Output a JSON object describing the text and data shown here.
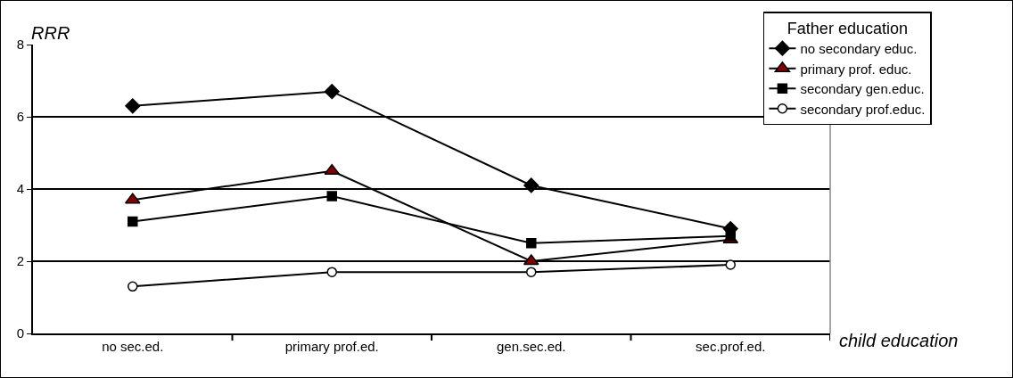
{
  "chart_data": {
    "type": "line",
    "xlabel": "child education",
    "ylabel": "RRR",
    "legend_title": "Father education",
    "categories": [
      "no sec.ed.",
      "primary prof.ed.",
      "gen.sec.ed.",
      "sec.prof.ed."
    ],
    "series": [
      {
        "name": "no secondary educ.",
        "color": "#000000",
        "marker": "diamond",
        "values": [
          6.3,
          6.7,
          4.1,
          2.9
        ]
      },
      {
        "name": "primary prof. educ.",
        "color": "#800000",
        "marker": "triangle",
        "values": [
          3.7,
          4.5,
          2.0,
          2.6
        ]
      },
      {
        "name": "secondary gen.educ.",
        "color": "#000000",
        "marker": "square",
        "values": [
          3.1,
          3.8,
          2.5,
          2.7
        ]
      },
      {
        "name": "secondary prof.educ.",
        "color": "#ffffff",
        "marker": "circle",
        "values": [
          1.3,
          1.7,
          1.7,
          1.9
        ]
      }
    ],
    "ylim": [
      0,
      8
    ],
    "yticks": [
      0,
      2,
      4,
      6,
      8
    ],
    "grid": "y",
    "legend": "top right",
    "line_style": "solid"
  }
}
